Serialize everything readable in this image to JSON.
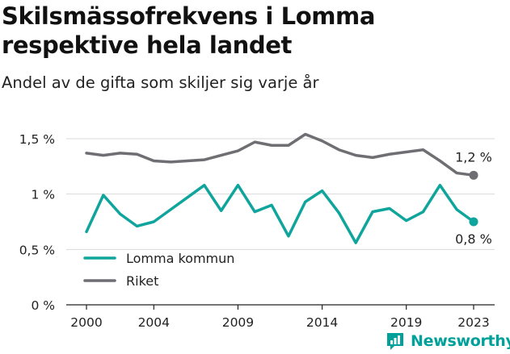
{
  "header": {
    "title": "Skilsmässofrekvens i Lomma respektive hela landet",
    "subtitle": "Andel av de gifta som skiljer sig varje år"
  },
  "brand": {
    "name": "Newsworthy",
    "icon": "newsworthy-logo-icon"
  },
  "colors": {
    "lomma": "#10a59c",
    "riket": "#6e6e73",
    "grid": "#d9d9d9",
    "axis": "#222222"
  },
  "chart_data": {
    "type": "line",
    "title": "Skilsmässofrekvens i Lomma respektive hela landet",
    "subtitle": "Andel av de gifta som skiljer sig varje år",
    "xlabel": "",
    "ylabel": "",
    "x": [
      2000,
      2001,
      2002,
      2003,
      2004,
      2005,
      2006,
      2007,
      2008,
      2009,
      2010,
      2011,
      2012,
      2013,
      2014,
      2015,
      2016,
      2017,
      2018,
      2019,
      2020,
      2021,
      2022,
      2023
    ],
    "xticks": [
      2000,
      2004,
      2009,
      2014,
      2019,
      2023
    ],
    "xtick_labels": [
      "2000",
      "2004",
      "2009",
      "2014",
      "2019",
      "2023"
    ],
    "xlim": [
      2000,
      2023
    ],
    "yticks": [
      0,
      0.5,
      1,
      1.5
    ],
    "ytick_labels": [
      "0 %",
      "0,5 %",
      "1 %",
      "1,5 %"
    ],
    "ylim": [
      0,
      1.5
    ],
    "grid": true,
    "legend_position": "bottom-left",
    "series": [
      {
        "name": "Lomma kommun",
        "color": "#10a59c",
        "values": [
          0.66,
          0.99,
          0.82,
          0.71,
          0.75,
          0.86,
          0.97,
          1.08,
          0.85,
          1.08,
          0.84,
          0.9,
          0.62,
          0.93,
          1.03,
          0.83,
          0.56,
          0.84,
          0.87,
          0.76,
          0.84,
          1.08,
          0.86,
          0.75
        ],
        "end_label": "0,8 %"
      },
      {
        "name": "Riket",
        "color": "#6e6e73",
        "values": [
          1.37,
          1.35,
          1.37,
          1.36,
          1.3,
          1.29,
          1.3,
          1.31,
          1.35,
          1.39,
          1.47,
          1.44,
          1.44,
          1.54,
          1.48,
          1.4,
          1.35,
          1.33,
          1.36,
          1.38,
          1.4,
          1.3,
          1.19,
          1.17
        ],
        "end_label": "1,2 %"
      }
    ]
  }
}
